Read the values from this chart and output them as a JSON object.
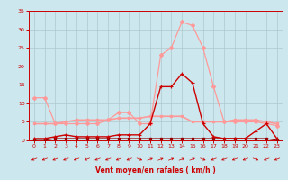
{
  "x": [
    0,
    1,
    2,
    3,
    4,
    5,
    6,
    7,
    8,
    9,
    10,
    11,
    12,
    13,
    14,
    15,
    16,
    17,
    18,
    19,
    20,
    21,
    22,
    23
  ],
  "line_gust_y": [
    11.5,
    11.5,
    4.5,
    4.5,
    4.5,
    4.5,
    4.5,
    5.5,
    7.5,
    7.5,
    4.5,
    4.5,
    23.0,
    25.0,
    32.0,
    31.0,
    25.0,
    14.5,
    5.0,
    5.0,
    5.0,
    5.0,
    4.5,
    4.0
  ],
  "line_mean_y": [
    4.5,
    4.5,
    4.5,
    5.0,
    5.5,
    5.5,
    5.5,
    5.5,
    6.0,
    6.0,
    6.0,
    6.5,
    6.5,
    6.5,
    6.5,
    5.0,
    5.0,
    5.0,
    5.0,
    5.5,
    5.5,
    5.5,
    5.0,
    4.5
  ],
  "line_dark_gust_y": [
    0.5,
    0.5,
    1.0,
    1.5,
    1.0,
    1.0,
    1.0,
    1.0,
    1.5,
    1.5,
    1.5,
    4.5,
    14.5,
    14.5,
    18.0,
    15.5,
    4.5,
    1.0,
    0.5,
    0.5,
    0.5,
    2.5,
    4.5,
    0.5
  ],
  "line_dark_mean_y": [
    0.0,
    0.0,
    0.5,
    0.5,
    0.5,
    0.5,
    0.5,
    0.5,
    0.5,
    0.5,
    0.5,
    0.5,
    0.5,
    0.5,
    0.5,
    0.5,
    0.5,
    0.5,
    0.5,
    0.5,
    0.5,
    0.5,
    0.5,
    0.0
  ],
  "color_light": "#ff9999",
  "color_dark": "#cc0000",
  "color_darkest": "#990000",
  "bg_color": "#cce8ee",
  "grid_color": "#b0c8cc",
  "text_color": "#cc0000",
  "xlabel": "Vent moyen/en rafales ( km/h )",
  "ylim": [
    0,
    35
  ],
  "xlim": [
    -0.5,
    23.5
  ],
  "yticks": [
    0,
    5,
    10,
    15,
    20,
    25,
    30,
    35
  ],
  "xticks": [
    0,
    1,
    2,
    3,
    4,
    5,
    6,
    7,
    8,
    9,
    10,
    11,
    12,
    13,
    14,
    15,
    16,
    17,
    18,
    19,
    20,
    21,
    22,
    23
  ],
  "arrow_angles": [
    225,
    225,
    225,
    225,
    225,
    225,
    225,
    225,
    225,
    225,
    315,
    45,
    45,
    45,
    45,
    45,
    315,
    225,
    225,
    225,
    225,
    315,
    225,
    225
  ]
}
